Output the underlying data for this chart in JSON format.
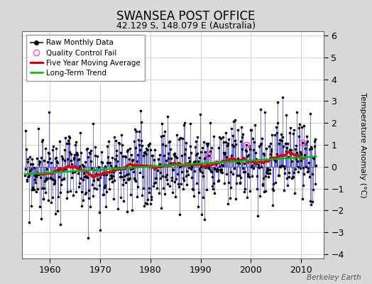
{
  "title": "SWANSEA POST OFFICE",
  "subtitle": "42.129 S, 148.079 E (Australia)",
  "ylabel": "Temperature Anomaly (°C)",
  "watermark": "Berkeley Earth",
  "ylim": [
    -4.2,
    6.2
  ],
  "xlim": [
    1954.5,
    2014.5
  ],
  "yticks": [
    -4,
    -3,
    -2,
    -1,
    0,
    1,
    2,
    3,
    4,
    5,
    6
  ],
  "xticks": [
    1960,
    1970,
    1980,
    1990,
    2000,
    2010
  ],
  "bg_color": "#d8d8d8",
  "plot_bg_color": "#ffffff",
  "line_color": "#3333cc",
  "dot_color": "#000000",
  "ma_color": "#dd0000",
  "trend_color": "#00bb00",
  "qc_color": "#ff44ff",
  "seed": 99,
  "n_months": 696,
  "start_year": 1955.042,
  "trend_slope": 0.0135,
  "trend_intercept": -0.38,
  "ma_window": 60,
  "noise_scale": 0.95,
  "seasonal_scale": 0.15,
  "qc_rate": 0.005
}
